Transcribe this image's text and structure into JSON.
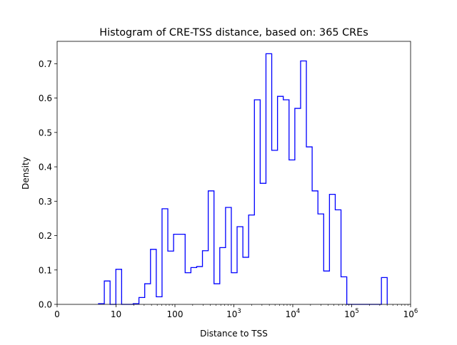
{
  "chart_data": {
    "type": "histogram-step",
    "title": "Histogram of CRE-TSS distance, based on: 365 CREs",
    "xlabel": "Distance to TSS",
    "ylabel": "Density",
    "xscale": "symlog",
    "xlim": [
      0,
      1000000
    ],
    "ylim": [
      0,
      0.765
    ],
    "x_tick_labels": [
      {
        "value": 0,
        "base": "0",
        "exp": ""
      },
      {
        "value": 1,
        "base": "10",
        "exp": ""
      },
      {
        "value": 2,
        "base": "100",
        "exp": ""
      },
      {
        "value": 3,
        "base": "10",
        "exp": "3"
      },
      {
        "value": 4,
        "base": "10",
        "exp": "4"
      },
      {
        "value": 5,
        "base": "10",
        "exp": "5"
      },
      {
        "value": 6,
        "base": "10",
        "exp": "6"
      }
    ],
    "y_ticks": [
      "0.0",
      "0.1",
      "0.2",
      "0.3",
      "0.4",
      "0.5",
      "0.6",
      "0.7"
    ],
    "line_color": "#0000ff",
    "bin_log10_start": 0.703,
    "bin_log10_width": 0.098,
    "densities": [
      0.002,
      0.068,
      0,
      0.102,
      0,
      0,
      0.002,
      0.02,
      0.06,
      0.16,
      0.022,
      0.278,
      0.155,
      0.204,
      0.204,
      0.092,
      0.107,
      0.11,
      0.156,
      0.33,
      0.06,
      0.165,
      0.282,
      0.092,
      0.226,
      0.137,
      0.26,
      0.595,
      0.352,
      0.729,
      0.448,
      0.605,
      0.595,
      0.42,
      0.57,
      0.708,
      0.458,
      0.33,
      0.263,
      0.097,
      0.32,
      0.275,
      0.08,
      0,
      0,
      0,
      0,
      0,
      0,
      0.078
    ]
  }
}
